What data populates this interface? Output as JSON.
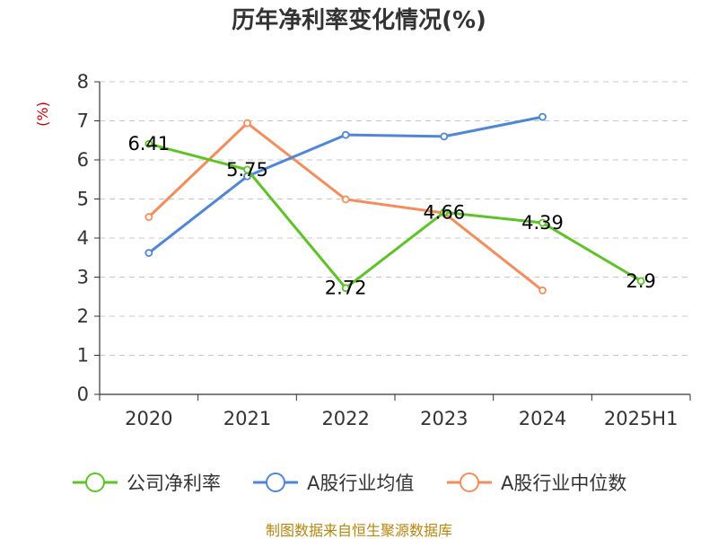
{
  "chart_data": {
    "type": "line",
    "title": "历年净利率变化情况(%)",
    "xlabel": "",
    "ylabel": "(%)",
    "ylim": [
      0,
      8
    ],
    "yticks": [
      0,
      1,
      2,
      3,
      4,
      5,
      6,
      7,
      8
    ],
    "grid": true,
    "legend_position": "bottom",
    "categories": [
      "2020",
      "2021",
      "2022",
      "2023",
      "2024",
      "2025H1"
    ],
    "series": [
      {
        "name": "公司净利率",
        "color": "#5cc425",
        "values": [
          6.41,
          5.75,
          2.72,
          4.66,
          4.39,
          2.9
        ],
        "labels": [
          "6.41",
          "5.75",
          "2.72",
          "4.66",
          "4.39",
          "2.9"
        ]
      },
      {
        "name": "A股行业均值",
        "color": "#4f86d9",
        "values": [
          3.62,
          5.58,
          6.64,
          6.6,
          7.1,
          null
        ]
      },
      {
        "name": "A股行业中位数",
        "color": "#f58d5b",
        "values": [
          4.54,
          6.94,
          4.99,
          4.64,
          2.66,
          null
        ]
      }
    ]
  },
  "footer": {
    "source": "制图数据来自恒生聚源数据库",
    "source_color": "#b8860b",
    "ylabel_color": "#cc0000"
  }
}
